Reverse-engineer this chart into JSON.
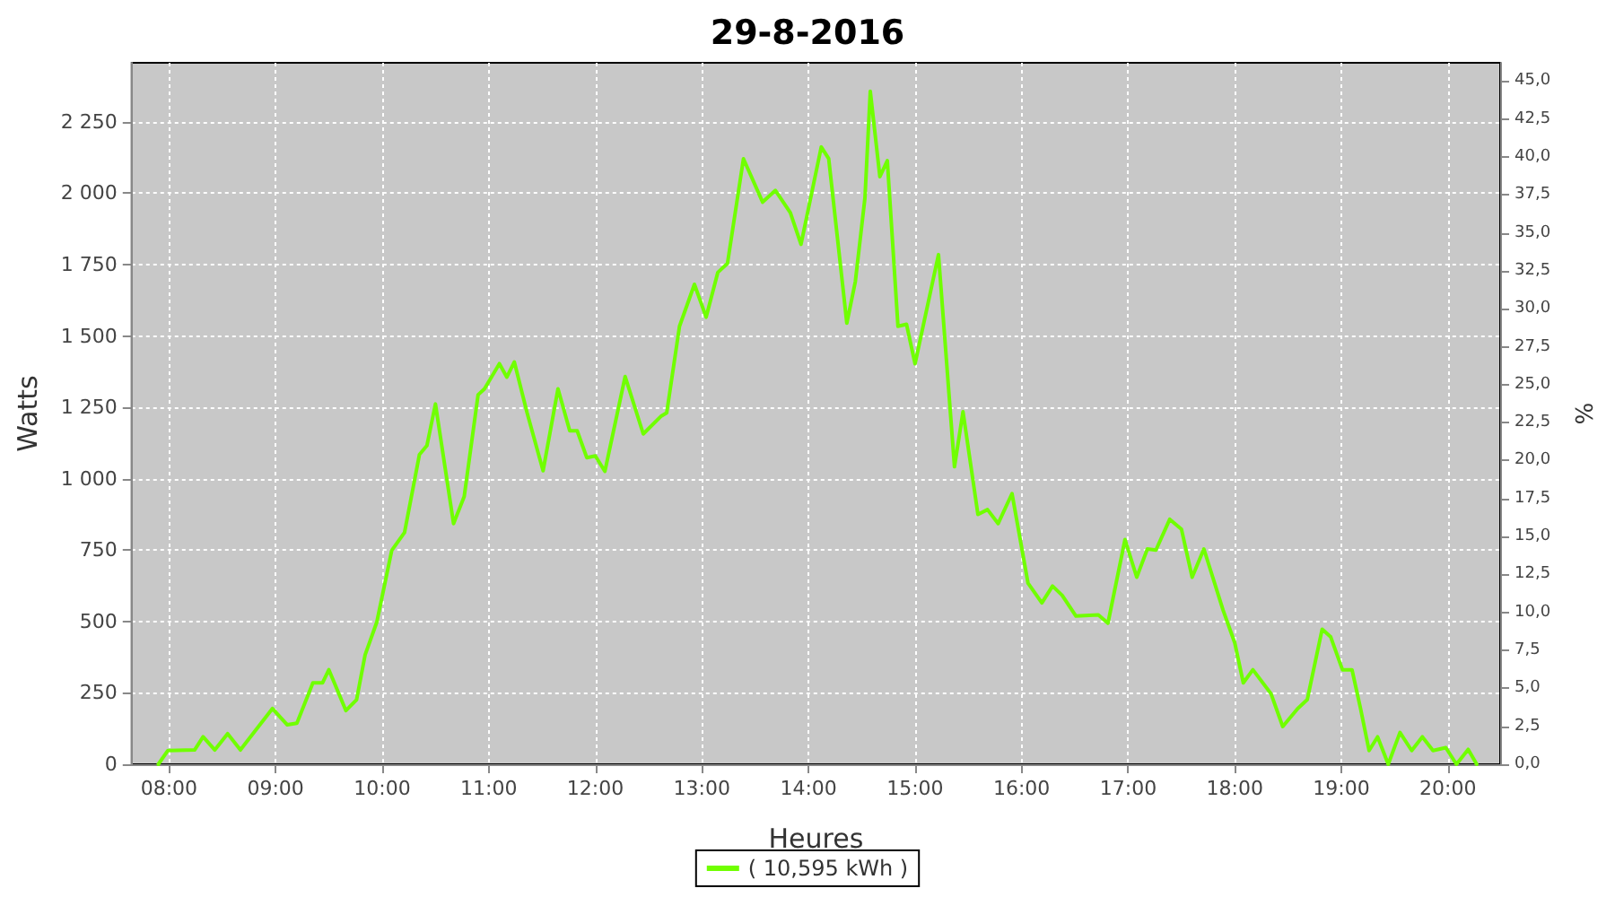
{
  "chart_data": {
    "type": "line",
    "title": "29-8-2016",
    "xlabel": "Heures",
    "ylabel": "Watts",
    "y2label": "%",
    "xlim": [
      7.65,
      20.49
    ],
    "ylim": [
      0,
      2457
    ],
    "y2lim": [
      0,
      46.2
    ],
    "xticks": [
      {
        "value": 8,
        "label": "08:00"
      },
      {
        "value": 9,
        "label": "09:00"
      },
      {
        "value": 10,
        "label": "10:00"
      },
      {
        "value": 11,
        "label": "11:00"
      },
      {
        "value": 12,
        "label": "12:00"
      },
      {
        "value": 13,
        "label": "13:00"
      },
      {
        "value": 14,
        "label": "14:00"
      },
      {
        "value": 15,
        "label": "15:00"
      },
      {
        "value": 16,
        "label": "16:00"
      },
      {
        "value": 17,
        "label": "17:00"
      },
      {
        "value": 18,
        "label": "18:00"
      },
      {
        "value": 19,
        "label": "19:00"
      },
      {
        "value": 20,
        "label": "20:00"
      }
    ],
    "yticks": [
      0,
      250,
      500,
      750,
      {
        "value": 1000,
        "label": "1 000"
      },
      {
        "value": 1250,
        "label": "1 250"
      },
      {
        "value": 1500,
        "label": "1 500"
      },
      {
        "value": 1750,
        "label": "1 750"
      },
      {
        "value": 2000,
        "label": "2 000"
      },
      {
        "value": 2250,
        "label": "2 250"
      }
    ],
    "y2ticks": [
      {
        "value": 0,
        "label": "0,0"
      },
      {
        "value": 2.5,
        "label": "2,5"
      },
      {
        "value": 5,
        "label": "5,0"
      },
      {
        "value": 7.5,
        "label": "7,5"
      },
      {
        "value": 10,
        "label": "10,0"
      },
      {
        "value": 12.5,
        "label": "12,5"
      },
      {
        "value": 15,
        "label": "15,0"
      },
      {
        "value": 17.5,
        "label": "17,5"
      },
      {
        "value": 20,
        "label": "20,0"
      },
      {
        "value": 22.5,
        "label": "22,5"
      },
      {
        "value": 25,
        "label": "25,0"
      },
      {
        "value": 27.5,
        "label": "27,5"
      },
      {
        "value": 30,
        "label": "30,0"
      },
      {
        "value": 32.5,
        "label": "32,5"
      },
      {
        "value": 35,
        "label": "35,0"
      },
      {
        "value": 37.5,
        "label": "37,5"
      },
      {
        "value": 40,
        "label": "40,0"
      },
      {
        "value": 42.5,
        "label": "42,5"
      },
      {
        "value": 45,
        "label": "45,0"
      }
    ],
    "grid": true,
    "legend": "bottom",
    "marker": "none",
    "line_style": "solid",
    "series": [
      {
        "name": "( 10,595 kWh )",
        "color": "#70ff00",
        "x": [
          7.9,
          7.99,
          8.24,
          8.32,
          8.43,
          8.55,
          8.67,
          8.97,
          9.11,
          9.2,
          9.35,
          9.44,
          9.5,
          9.66,
          9.76,
          9.84,
          9.95,
          10.09,
          10.21,
          10.35,
          10.42,
          10.5,
          10.67,
          10.77,
          10.9,
          10.96,
          11.1,
          11.17,
          11.24,
          11.36,
          11.51,
          11.65,
          11.76,
          11.83,
          11.92,
          12.0,
          12.09,
          12.28,
          12.45,
          12.62,
          12.67,
          12.79,
          12.93,
          13.04,
          13.15,
          13.24,
          13.39,
          13.57,
          13.69,
          13.83,
          13.93,
          14.12,
          14.19,
          14.36,
          14.44,
          14.53,
          14.58,
          14.67,
          14.74,
          14.84,
          14.92,
          15.0,
          15.22,
          15.37,
          15.45,
          15.59,
          15.68,
          15.78,
          15.91,
          16.06,
          16.19,
          16.29,
          16.38,
          16.51,
          16.72,
          16.81,
          16.97,
          17.08,
          17.18,
          17.26,
          17.39,
          17.5,
          17.6,
          17.71,
          17.89,
          18.0,
          18.08,
          18.17,
          18.34,
          18.45,
          18.59,
          18.68,
          18.82,
          18.9,
          19.01,
          19.1,
          19.18,
          19.26,
          19.34,
          19.44,
          19.55,
          19.66,
          19.76,
          19.86,
          19.98,
          20.08,
          20.19,
          20.27
        ],
        "values": [
          0,
          48,
          50,
          96,
          50,
          107,
          50,
          195,
          138,
          144,
          285,
          285,
          331,
          188,
          226,
          383,
          498,
          749,
          812,
          1085,
          1116,
          1262,
          843,
          938,
          1294,
          1315,
          1403,
          1356,
          1409,
          1231,
          1028,
          1315,
          1168,
          1168,
          1074,
          1080,
          1026,
          1358,
          1157,
          1220,
          1231,
          1534,
          1681,
          1566,
          1723,
          1754,
          2121,
          1969,
          2010,
          1932,
          1821,
          2162,
          2121,
          1545,
          1691,
          1984,
          2357,
          2058,
          2114,
          1534,
          1541,
          1403,
          1785,
          1042,
          1235,
          875,
          892,
          843,
          948,
          634,
          565,
          624,
          592,
          519,
          523,
          494,
          787,
          655,
          754,
          750,
          858,
          823,
          655,
          754,
          540,
          425,
          285,
          331,
          247,
          132,
          195,
          226,
          473,
          446,
          331,
          331,
          195,
          48,
          96,
          0,
          111,
          48,
          96,
          48,
          58,
          0,
          52,
          0
        ]
      }
    ]
  }
}
